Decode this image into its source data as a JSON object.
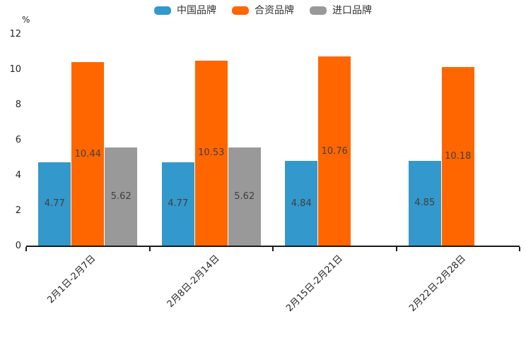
{
  "chart": {
    "unit_label": "%"
  },
  "chart_data": {
    "type": "bar",
    "title": "",
    "xlabel": "",
    "ylabel": "%",
    "categories": [
      "2月1日-2月7日",
      "2月8日-2月14日",
      "2月15日-2月21日",
      "2月22日-2月28日"
    ],
    "series": [
      {
        "name": "中国品牌",
        "color": "#3398cb",
        "values": [
          4.77,
          4.77,
          4.84,
          4.85
        ]
      },
      {
        "name": "合资品牌",
        "color": "#ff6600",
        "values": [
          10.44,
          10.53,
          10.76,
          10.18
        ]
      },
      {
        "name": "进口品牌",
        "color": "#999999",
        "values": [
          5.62,
          5.62,
          null,
          null
        ]
      }
    ],
    "ylim": [
      0,
      12
    ],
    "ytick_step": 2,
    "yticks": [
      0,
      2,
      4,
      6,
      8,
      10,
      12
    ],
    "grid": false,
    "legend_position": "top",
    "bar_labels_shown": true,
    "axis_color": "#1a1a1a",
    "label_color": "#404040"
  }
}
